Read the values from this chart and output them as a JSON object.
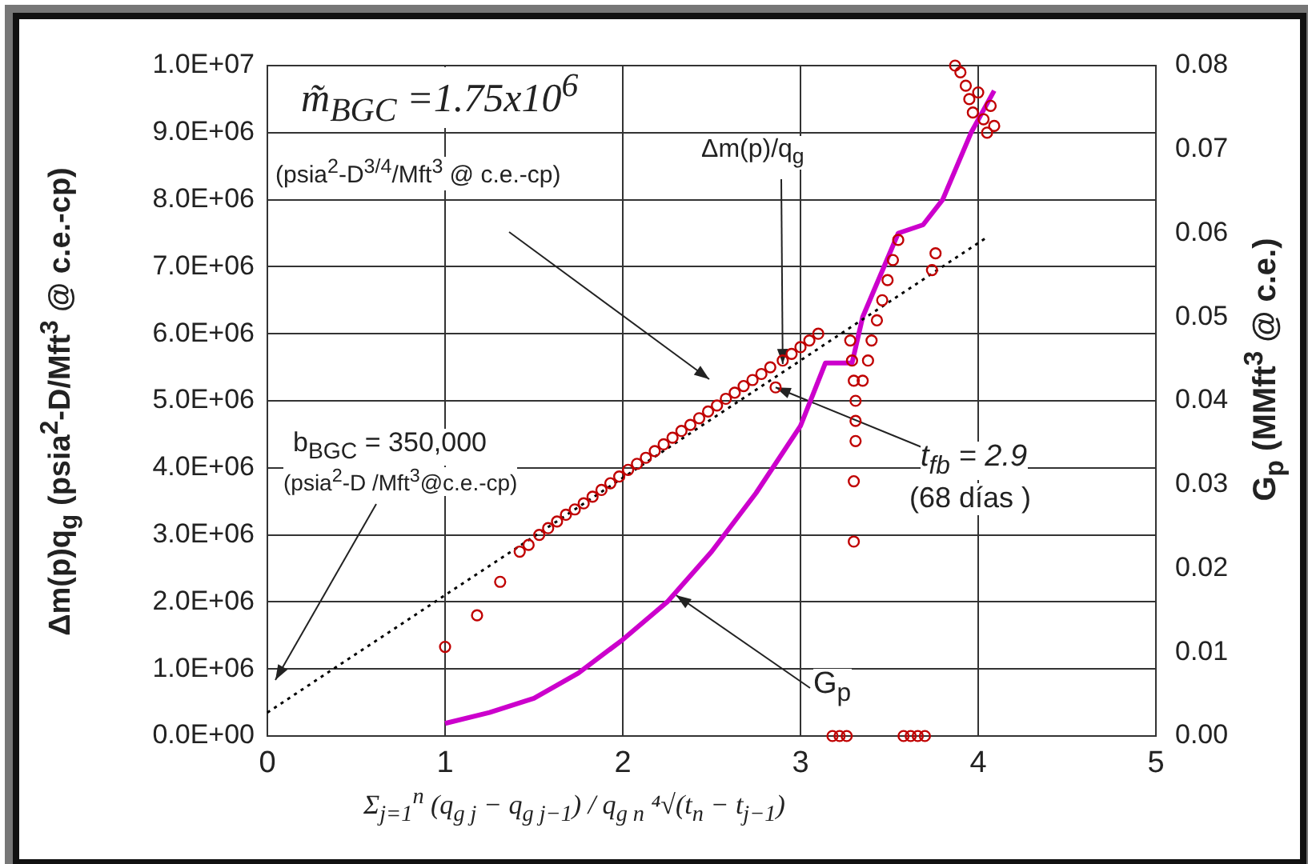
{
  "chart_data": {
    "type": "scatter",
    "xlabel": "Σ$_{j=1}$$^{n}$ (q$_{g j}$ − q$_{g j−1}$) / q$_{g n}$ ⁴√(t$_{n}$ − t$_{j−1}$)",
    "ylabel": "Δm(p)q$_{g}$ (psia$^{2}$-D/Mft$^{3}$ @ c.e.-cp)",
    "y2label": "G$_{p}$ (MMft$^{3}$ @ c.e.)",
    "xlim": [
      0,
      5
    ],
    "xticks": [
      0,
      1,
      2,
      3,
      4,
      5
    ],
    "ylim": [
      0,
      10000000
    ],
    "yticks": [
      {
        "value": 0,
        "label": "0.0E+00"
      },
      {
        "value": 1000000,
        "label": "1.0E+06"
      },
      {
        "value": 2000000,
        "label": "2.0E+06"
      },
      {
        "value": 3000000,
        "label": "3.0E+06"
      },
      {
        "value": 4000000,
        "label": "4.0E+06"
      },
      {
        "value": 5000000,
        "label": "5.0E+06"
      },
      {
        "value": 6000000,
        "label": "6.0E+06"
      },
      {
        "value": 7000000,
        "label": "7.0E+06"
      },
      {
        "value": 8000000,
        "label": "8.0E+06"
      },
      {
        "value": 9000000,
        "label": "9.0E+06"
      },
      {
        "value": 10000000,
        "label": "1.0E+07"
      }
    ],
    "y2lim": [
      0,
      0.08
    ],
    "y2ticks": [
      {
        "value": 0,
        "label": "0.00"
      },
      0.01,
      0.02,
      0.03,
      0.04,
      0.05,
      0.06,
      0.07,
      0.08
    ],
    "grid": true,
    "legend": false,
    "series": [
      {
        "marker": "circle",
        "color": "#c00000",
        "x": [
          1.0,
          1.18,
          1.31,
          1.42,
          1.47,
          1.53,
          1.58,
          1.63,
          1.68,
          1.73,
          1.78,
          1.83,
          1.88,
          1.93,
          1.98,
          2.03,
          2.08,
          2.13,
          2.18,
          2.23,
          2.28,
          2.33,
          2.38,
          2.43,
          2.48,
          2.53,
          2.58,
          2.63,
          2.68,
          2.73,
          2.78,
          2.83,
          2.86,
          2.9,
          2.95,
          3.0,
          3.05,
          3.1,
          3.28,
          3.29,
          3.3,
          3.31,
          3.31,
          3.31,
          3.3,
          3.3,
          3.35,
          3.38,
          3.4,
          3.43,
          3.46,
          3.49,
          3.52,
          3.55,
          3.74,
          3.76,
          3.87,
          3.9,
          3.93,
          3.95,
          3.97,
          4.0,
          4.03,
          4.05,
          4.07,
          4.09,
          3.18,
          3.22,
          3.26,
          3.58,
          3.62,
          3.66,
          3.7
        ],
        "values": [
          1330000,
          1800000,
          2300000,
          2750000,
          2850000,
          3000000,
          3100000,
          3200000,
          3300000,
          3380000,
          3470000,
          3570000,
          3670000,
          3770000,
          3870000,
          3970000,
          4060000,
          4150000,
          4250000,
          4350000,
          4450000,
          4550000,
          4640000,
          4740000,
          4840000,
          4930000,
          5030000,
          5120000,
          5220000,
          5310000,
          5400000,
          5500000,
          5200000,
          5600000,
          5700000,
          5800000,
          5900000,
          6000000,
          5900000,
          5600000,
          5300000,
          5000000,
          4700000,
          4400000,
          3800000,
          2900000,
          5300000,
          5600000,
          5900000,
          6200000,
          6500000,
          6800000,
          7100000,
          7400000,
          6950000,
          7200000,
          10000000,
          9900000,
          9700000,
          9500000,
          9300000,
          9600000,
          9200000,
          9000000,
          9400000,
          9100000,
          0,
          0,
          0,
          0,
          0,
          0,
          0
        ]
      },
      {
        "type": "line",
        "marker": "none",
        "line_style": "dotted",
        "color": "#000000",
        "x": [
          0,
          4.05
        ],
        "values": [
          350000,
          7440000
        ]
      },
      {
        "type": "line",
        "axis": "y2",
        "marker": "none",
        "line_style": "solid",
        "color": "#cc00cc",
        "x": [
          1.0,
          1.25,
          1.5,
          1.75,
          2.0,
          2.25,
          2.5,
          2.75,
          3.0,
          3.14,
          3.29,
          3.35,
          3.55,
          3.69,
          3.8,
          3.96,
          4.09
        ],
        "values": [
          0.0015,
          0.0028,
          0.0045,
          0.0075,
          0.0115,
          0.016,
          0.022,
          0.029,
          0.037,
          0.0445,
          0.0445,
          0.05,
          0.06,
          0.061,
          0.064,
          0.072,
          0.077
        ]
      }
    ],
    "annotations": [
      "m̃$_{BGC}$ =1.75x10$^{6}$",
      "(psia$^{2}$-D$^{3/4}$/Mft$^{3}$ @ c.e.-cp)",
      {
        "text": "Δm(p)/q$_{g}$",
        "x": 2.9,
        "y": 5550000
      },
      "b$_{BGC}$ = 350,000",
      "(psia$^{2}$-D /Mft$^{3}$@c.e.-cp)",
      {
        "text": "t$_{fb}$ = 2.9",
        "x": 2.86,
        "y": 5200000
      },
      "(68 días )",
      {
        "text": "G$_{p}$",
        "x": 2.3,
        "y": 2100000
      }
    ]
  }
}
